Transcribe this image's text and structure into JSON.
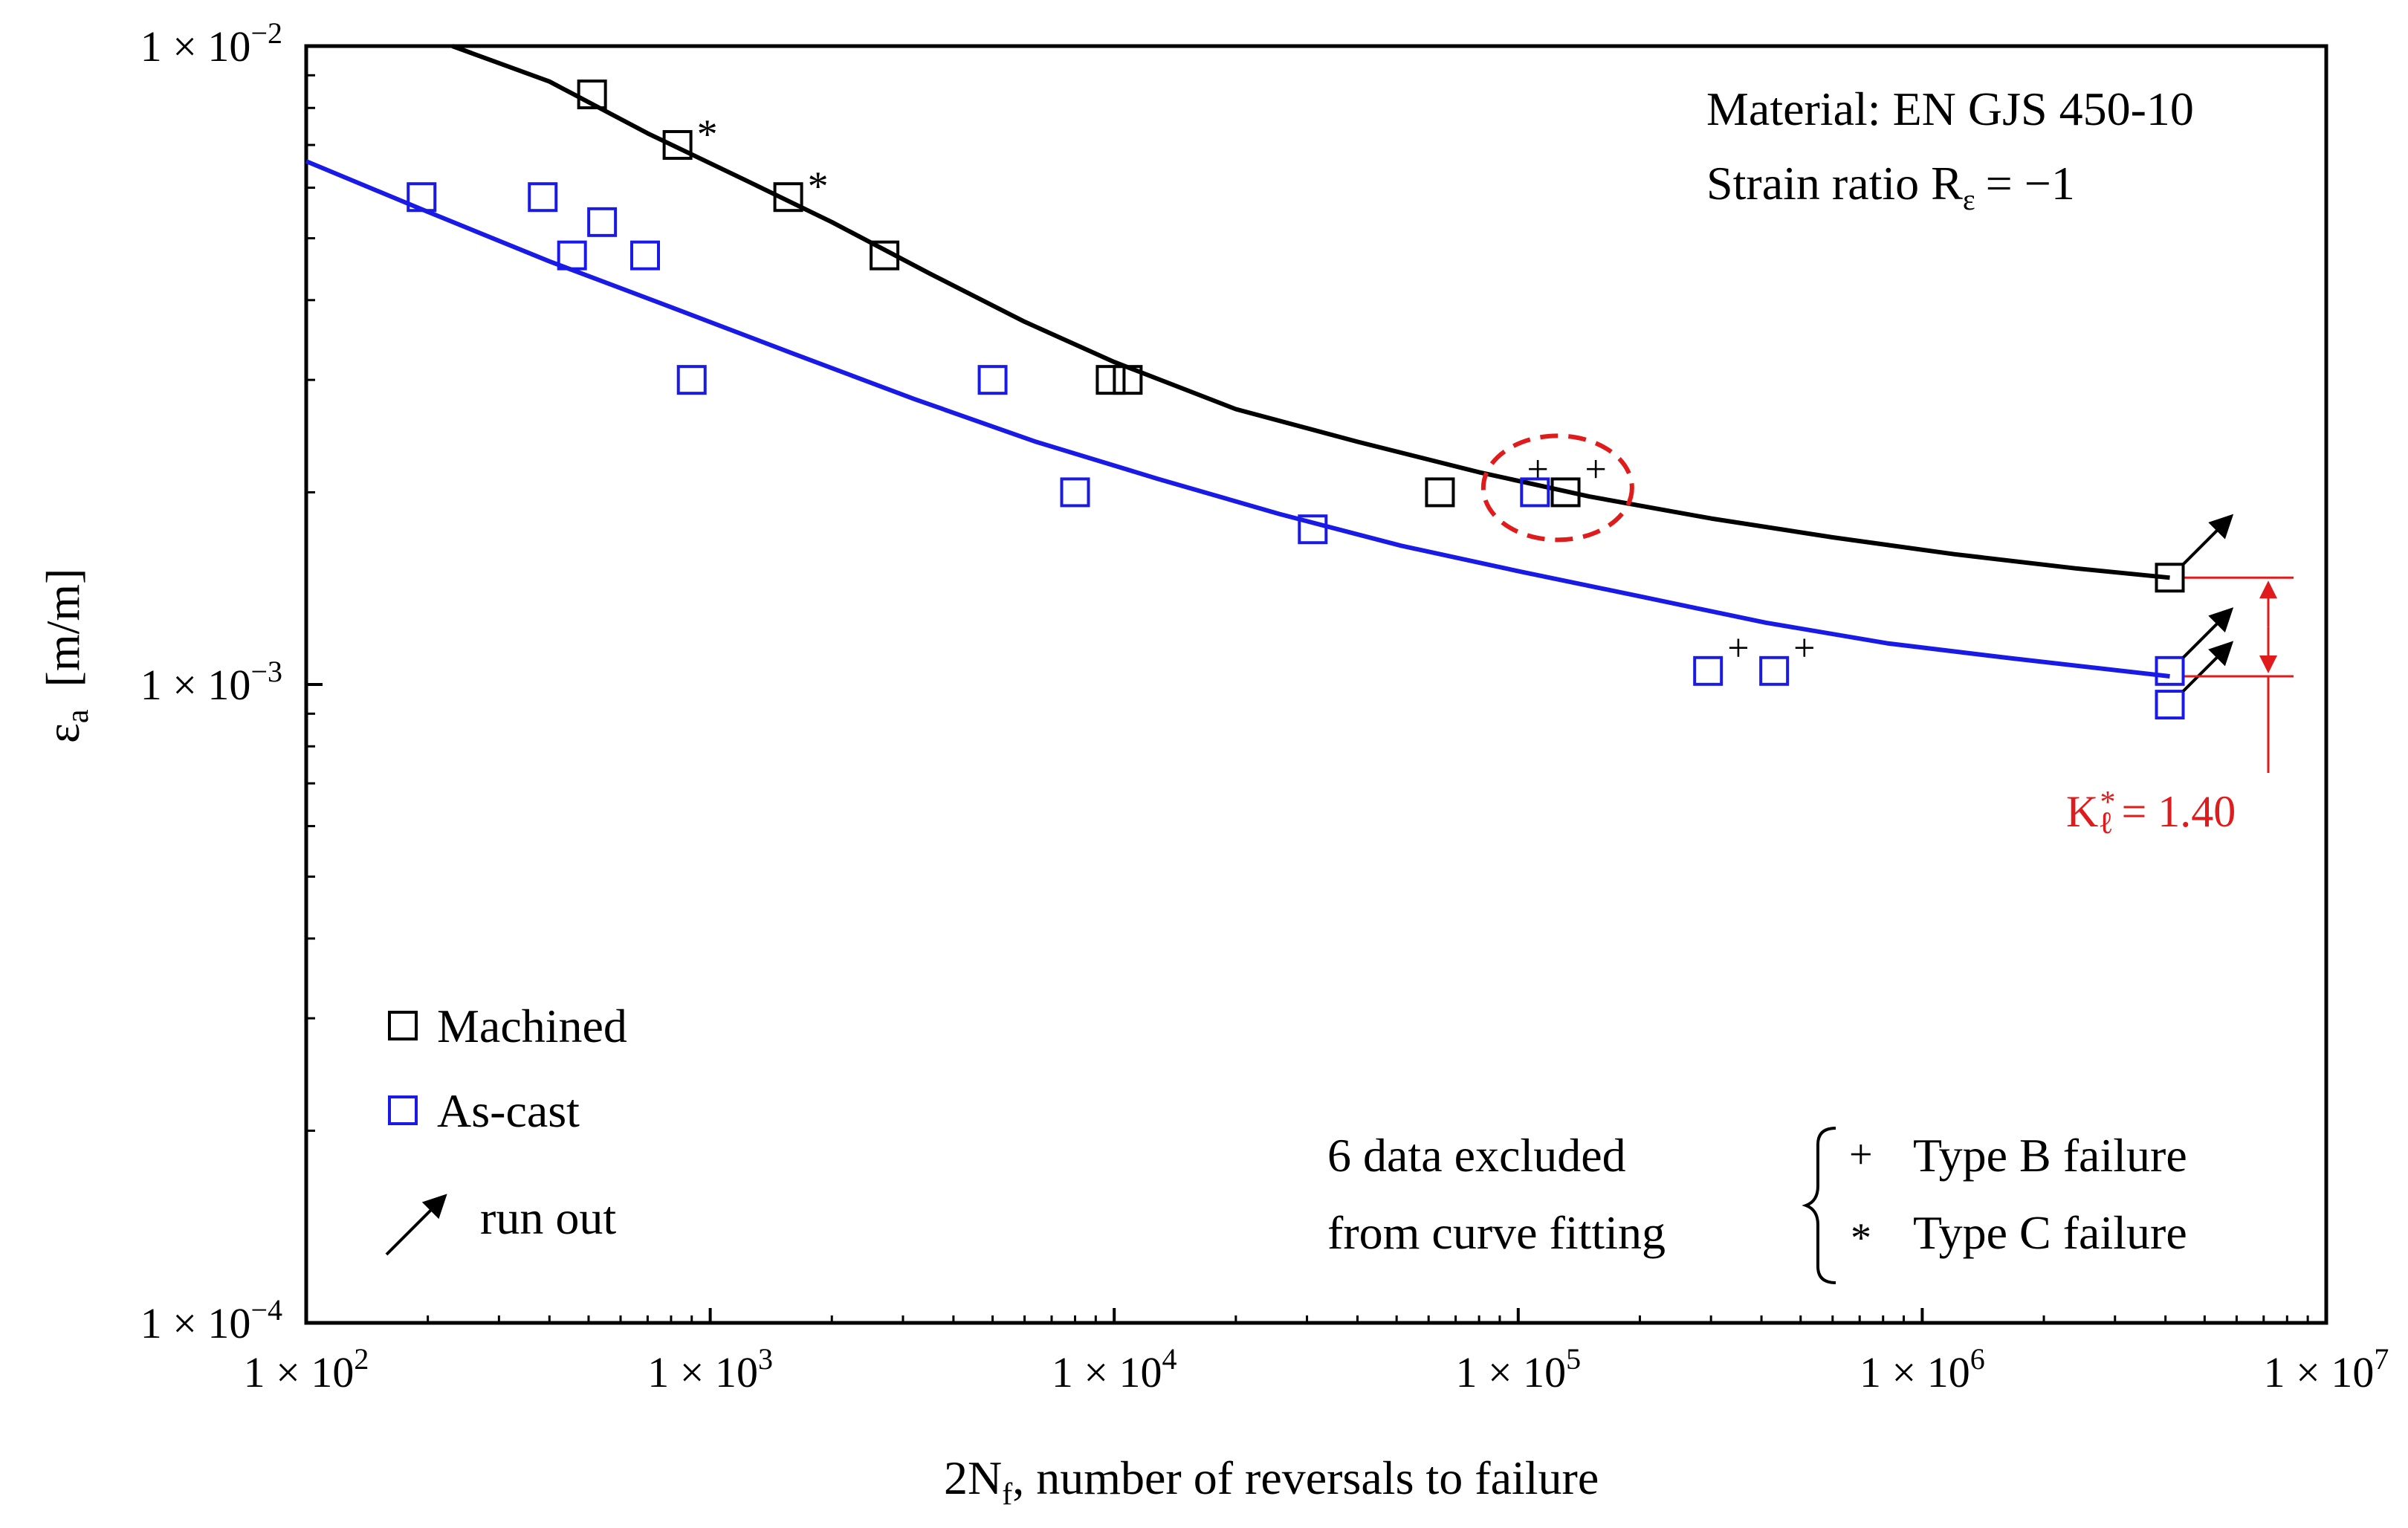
{
  "chart_data": {
    "type": "scatter",
    "xscale": "log",
    "yscale": "log",
    "xlim": [
      100,
      10000000
    ],
    "ylim": [
      0.0001,
      0.01
    ],
    "xlabel": "2N",
    "xlabel_sub": "f",
    "xlabel_rest": ", number of reversals to failure",
    "ylabel": "ε",
    "ylabel_sub": "a",
    "ylabel_unit": "[m/m]",
    "x_ticks": [
      {
        "value": 100,
        "mantissa": "1 × 10",
        "exp": "2"
      },
      {
        "value": 1000,
        "mantissa": "1 × 10",
        "exp": "3"
      },
      {
        "value": 10000,
        "mantissa": "1 × 10",
        "exp": "4"
      },
      {
        "value": 100000,
        "mantissa": "1 × 10",
        "exp": "5"
      },
      {
        "value": 1000000,
        "mantissa": "1 × 10",
        "exp": "6"
      },
      {
        "value": 10000000,
        "mantissa": "1 × 10",
        "exp": "7"
      }
    ],
    "y_ticks": [
      {
        "value": 0.01,
        "mantissa": "1 × 10",
        "exp": "−2"
      },
      {
        "value": 0.001,
        "mantissa": "1 × 10",
        "exp": "−3"
      },
      {
        "value": 0.0001,
        "mantissa": "1 × 10",
        "exp": "−4"
      }
    ],
    "series": [
      {
        "name": "Machined",
        "color": "#000000",
        "points": [
          {
            "x": 510,
            "y": 0.0084,
            "mark": ""
          },
          {
            "x": 830,
            "y": 0.007,
            "mark": "*"
          },
          {
            "x": 1560,
            "y": 0.0058,
            "mark": "*"
          },
          {
            "x": 2700,
            "y": 0.0047,
            "mark": ""
          },
          {
            "x": 9800,
            "y": 0.003,
            "mark": ""
          },
          {
            "x": 10800,
            "y": 0.003,
            "mark": ""
          },
          {
            "x": 64000,
            "y": 0.002,
            "mark": ""
          },
          {
            "x": 131000,
            "y": 0.002,
            "mark": "+",
            "mark2": "+"
          },
          {
            "x": 4100000,
            "y": 0.00147,
            "mark": "",
            "runout": true
          }
        ],
        "curve": [
          {
            "x": 230,
            "y": 0.01
          },
          {
            "x": 400,
            "y": 0.0088
          },
          {
            "x": 700,
            "y": 0.0073
          },
          {
            "x": 1200,
            "y": 0.0062
          },
          {
            "x": 2000,
            "y": 0.0053
          },
          {
            "x": 3500,
            "y": 0.0044
          },
          {
            "x": 6000,
            "y": 0.0037
          },
          {
            "x": 10000,
            "y": 0.0032
          },
          {
            "x": 20000,
            "y": 0.0027
          },
          {
            "x": 40000,
            "y": 0.0024
          },
          {
            "x": 80000,
            "y": 0.00215
          },
          {
            "x": 150000,
            "y": 0.00197
          },
          {
            "x": 300000,
            "y": 0.00182
          },
          {
            "x": 600000,
            "y": 0.0017
          },
          {
            "x": 1200000,
            "y": 0.0016
          },
          {
            "x": 2400000,
            "y": 0.00152
          },
          {
            "x": 4100000,
            "y": 0.00147
          }
        ]
      },
      {
        "name": "As-cast",
        "color": "#1a1ae6",
        "points": [
          {
            "x": 193,
            "y": 0.0058,
            "mark": ""
          },
          {
            "x": 385,
            "y": 0.0058,
            "mark": ""
          },
          {
            "x": 455,
            "y": 0.0047,
            "mark": ""
          },
          {
            "x": 540,
            "y": 0.0053,
            "mark": ""
          },
          {
            "x": 690,
            "y": 0.0047,
            "mark": ""
          },
          {
            "x": 900,
            "y": 0.003,
            "mark": ""
          },
          {
            "x": 5000,
            "y": 0.003,
            "mark": ""
          },
          {
            "x": 8000,
            "y": 0.002,
            "mark": ""
          },
          {
            "x": 31000,
            "y": 0.00175,
            "mark": ""
          },
          {
            "x": 110000,
            "y": 0.002,
            "mark": ""
          },
          {
            "x": 295000,
            "y": 0.00105,
            "mark": "+"
          },
          {
            "x": 430000,
            "y": 0.00105,
            "mark": "+"
          },
          {
            "x": 4100000,
            "y": 0.00105,
            "mark": "",
            "runout": true
          },
          {
            "x": 4100000,
            "y": 0.00093,
            "mark": "",
            "runout": true
          }
        ],
        "curve": [
          {
            "x": 100,
            "y": 0.0066
          },
          {
            "x": 200,
            "y": 0.0055
          },
          {
            "x": 400,
            "y": 0.0046
          },
          {
            "x": 800,
            "y": 0.0039
          },
          {
            "x": 1600,
            "y": 0.0033
          },
          {
            "x": 3200,
            "y": 0.0028
          },
          {
            "x": 6400,
            "y": 0.0024
          },
          {
            "x": 12800,
            "y": 0.0021
          },
          {
            "x": 25600,
            "y": 0.00185
          },
          {
            "x": 51200,
            "y": 0.00165
          },
          {
            "x": 102400,
            "y": 0.0015
          },
          {
            "x": 204800,
            "y": 0.00137
          },
          {
            "x": 409600,
            "y": 0.00125
          },
          {
            "x": 819200,
            "y": 0.00116
          },
          {
            "x": 1638400,
            "y": 0.0011
          },
          {
            "x": 4100000,
            "y": 0.00103
          }
        ]
      }
    ],
    "highlight_ellipse": {
      "center_x": 120000,
      "center_y": 0.002,
      "color": "#e01b1b"
    },
    "k_annotation": {
      "label": "K",
      "sub": "ℓ",
      "sup": "*",
      "value": "= 1.40",
      "y_top": 0.00147,
      "y_bottom": 0.00103,
      "color": "#e01b1b"
    },
    "info_lines": [
      "Material: EN GJS 450-10",
      "Strain ratio R",
      "ε",
      "= −1"
    ],
    "legend": {
      "machined": "Machined",
      "ascast": "As-cast",
      "runout": "run out"
    },
    "exclusion_note": {
      "line1": "6 data excluded",
      "line2": "from curve fitting",
      "type_b_symbol": "+",
      "type_b": "Type B failure",
      "type_c_symbol": "*",
      "type_c": "Type C failure"
    }
  }
}
